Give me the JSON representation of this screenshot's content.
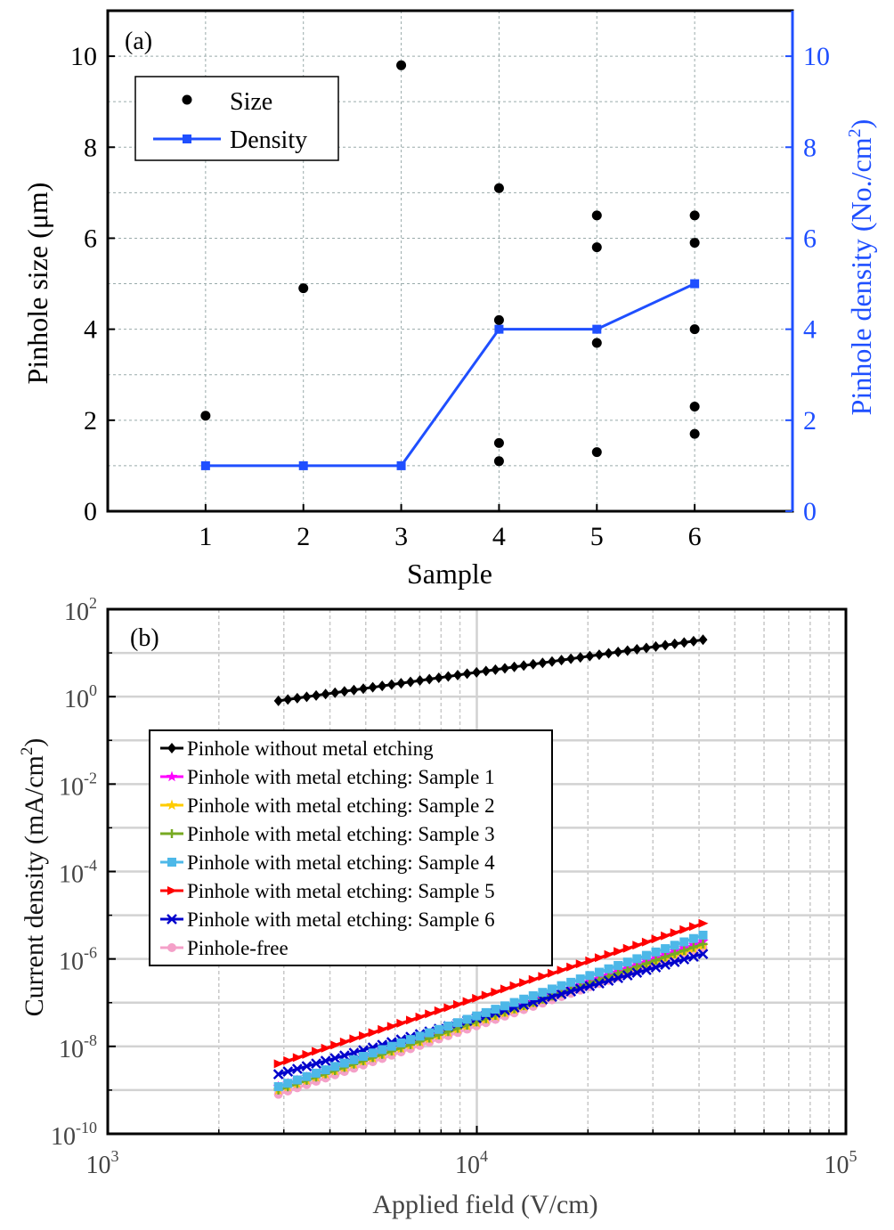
{
  "chart_data": [
    {
      "panel_label": "(a)",
      "type": "scatter",
      "xlabel": "Sample",
      "ylabel": "Pinhole size (μm)",
      "y2label_main": "Pinhole density (No./cm",
      "y2label_sup": "2",
      "y2label_end": ")",
      "xlim": [
        0,
        7
      ],
      "ylim": [
        0,
        11
      ],
      "y2lim": [
        0,
        11
      ],
      "x_ticks": [
        1,
        2,
        3,
        4,
        5,
        6
      ],
      "y_ticks": [
        0,
        2,
        4,
        6,
        8,
        10
      ],
      "y2_ticks": [
        0,
        2,
        4,
        6,
        8,
        10
      ],
      "grid": true,
      "legend_position": "top-left",
      "series": [
        {
          "name": "Size",
          "kind": "scatter",
          "color": "#000000",
          "points": [
            [
              1,
              2.1
            ],
            [
              2,
              4.9
            ],
            [
              3,
              9.8
            ],
            [
              4,
              7.1
            ],
            [
              4,
              4.2
            ],
            [
              4,
              1.5
            ],
            [
              4,
              1.1
            ],
            [
              5,
              6.5
            ],
            [
              5,
              5.8
            ],
            [
              5,
              3.7
            ],
            [
              5,
              1.3
            ],
            [
              6,
              6.5
            ],
            [
              6,
              5.9
            ],
            [
              6,
              4.0
            ],
            [
              6,
              2.3
            ],
            [
              6,
              1.7
            ]
          ]
        },
        {
          "name": "Density",
          "kind": "line",
          "axis": "right",
          "color": "#1f4fff",
          "points": [
            [
              1,
              1
            ],
            [
              2,
              1
            ],
            [
              3,
              1
            ],
            [
              4,
              4
            ],
            [
              5,
              4
            ],
            [
              6,
              5
            ]
          ]
        }
      ]
    },
    {
      "panel_label": "(b)",
      "type": "line",
      "xlabel": "Applied field (V/cm)",
      "ylabel_main": "Current density (mA/cm",
      "ylabel_sup": "2",
      "ylabel_end": ")",
      "x_scale": "log",
      "y_scale": "log",
      "xlim": [
        1000,
        100000
      ],
      "ylim": [
        1e-10,
        100
      ],
      "x_ticks": [
        {
          "base": "10",
          "exp": "3"
        },
        {
          "base": "10",
          "exp": "4"
        },
        {
          "base": "10",
          "exp": "5"
        }
      ],
      "y_ticks": [
        {
          "base": "10",
          "exp": "-10"
        },
        {
          "base": "10",
          "exp": "-8"
        },
        {
          "base": "10",
          "exp": "-6"
        },
        {
          "base": "10",
          "exp": "-4"
        },
        {
          "base": "10",
          "exp": "-2"
        },
        {
          "base": "10",
          "exp": "0"
        },
        {
          "base": "10",
          "exp": "2"
        }
      ],
      "grid": true,
      "legend_position": "center-left",
      "series": [
        {
          "name": "Pinhole without metal etching",
          "color": "#000000",
          "marker": "diamond",
          "x_range": [
            2900,
            41000
          ],
          "y_start": 0.8,
          "y_end": 20
        },
        {
          "name": "Pinhole with metal etching: Sample 1",
          "color": "#ff00ff",
          "marker": "star",
          "x_range": [
            2900,
            41000
          ],
          "y_start": 1.2e-09,
          "y_end": 2.5e-06
        },
        {
          "name": "Pinhole with metal etching: Sample 2",
          "color": "#ffcc00",
          "marker": "star",
          "x_range": [
            2900,
            41000
          ],
          "y_start": 1e-09,
          "y_end": 2e-06
        },
        {
          "name": "Pinhole with metal etching: Sample 3",
          "color": "#77aa22",
          "marker": "plus",
          "x_range": [
            2900,
            41000
          ],
          "y_start": 1e-09,
          "y_end": 2.2e-06
        },
        {
          "name": "Pinhole with metal etching: Sample 4",
          "color": "#4db8e8",
          "marker": "square",
          "x_range": [
            2900,
            41000
          ],
          "y_start": 1.2e-09,
          "y_end": 3.5e-06
        },
        {
          "name": "Pinhole with metal etching: Sample 5",
          "color": "#ff0000",
          "marker": "triangle-right",
          "x_range": [
            2900,
            41000
          ],
          "y_start": 4e-09,
          "y_end": 6.5e-06
        },
        {
          "name": "Pinhole with metal etching: Sample 6",
          "color": "#0000cc",
          "marker": "x",
          "x_range": [
            2900,
            41000
          ],
          "y_start": 2.3e-09,
          "y_end": 1.3e-06
        },
        {
          "name": "Pinhole-free",
          "color": "#f4a0c8",
          "marker": "circle",
          "x_range": [
            2900,
            41000
          ],
          "y_start": 8e-10,
          "y_end": 1.8e-06
        }
      ]
    }
  ]
}
